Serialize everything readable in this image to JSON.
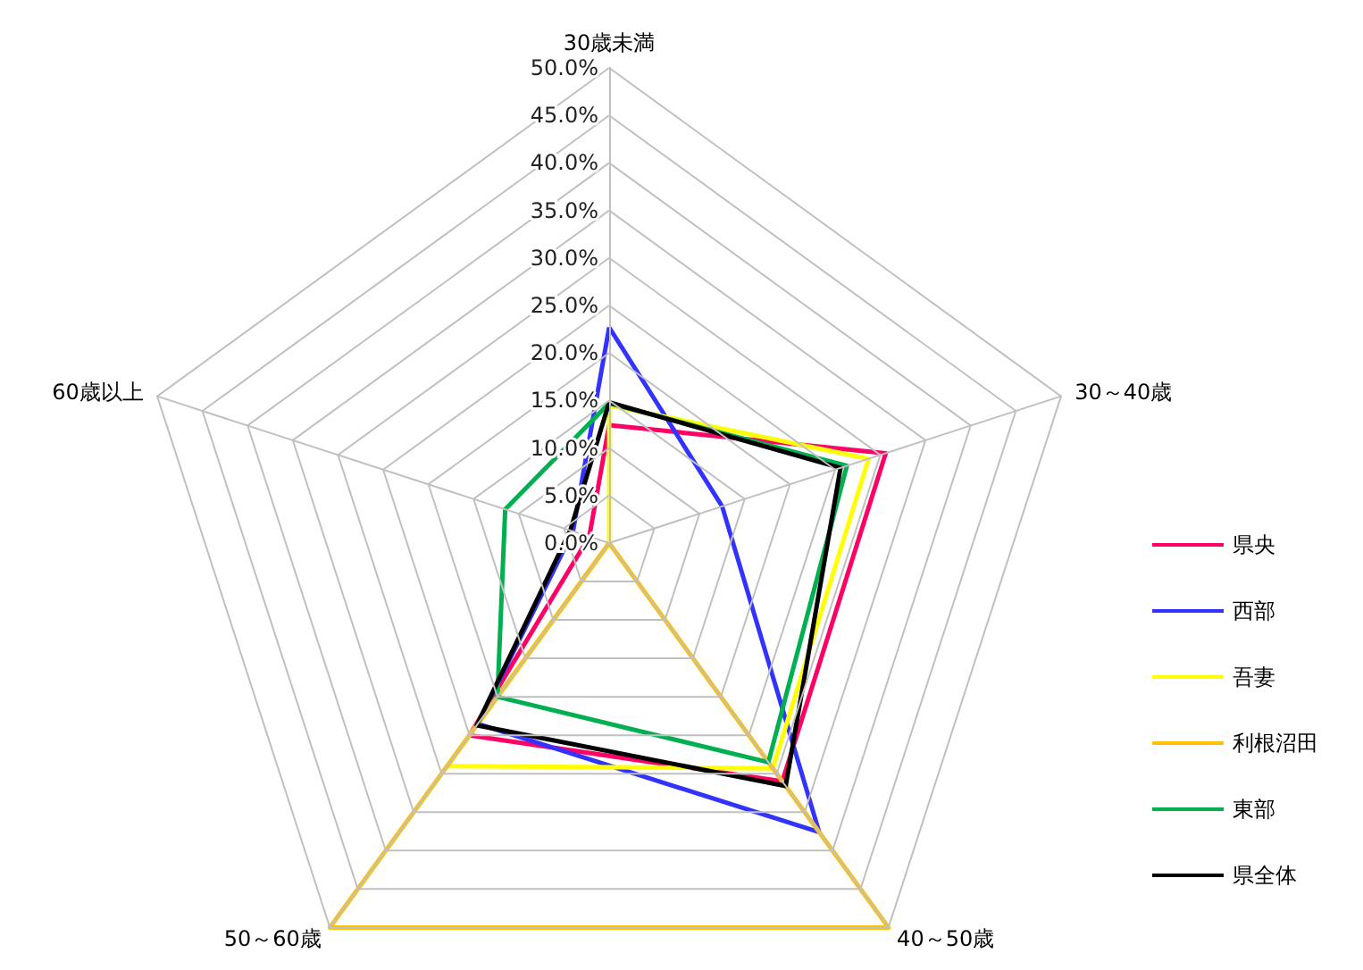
{
  "chart_data": {
    "type": "radar",
    "categories": [
      "30歳未満",
      "30～40歳",
      "40～50歳",
      "50～60歳",
      "60歳以上"
    ],
    "ylim": [
      0,
      50
    ],
    "yticks": [
      {
        "value": 0,
        "label": "0.0%"
      },
      {
        "value": 5,
        "label": "5.0%"
      },
      {
        "value": 10,
        "label": "10.0%"
      },
      {
        "value": 15,
        "label": "15.0%"
      },
      {
        "value": 20,
        "label": "20.0%"
      },
      {
        "value": 25,
        "label": "25.0%"
      },
      {
        "value": 30,
        "label": "30.0%"
      },
      {
        "value": 35,
        "label": "35.0%"
      },
      {
        "value": 40,
        "label": "40.0%"
      },
      {
        "value": 45,
        "label": "45.0%"
      },
      {
        "value": 50,
        "label": "50.0%"
      }
    ],
    "grid": true,
    "legend": "right",
    "marker": "none",
    "line_style": "solid",
    "series": [
      {
        "name": "県央",
        "color": "#ff0066",
        "values": [
          12.4,
          30.6,
          31.0,
          25.0,
          2.2
        ]
      },
      {
        "name": "西部",
        "color": "#3333ff",
        "values": [
          22.7,
          12.5,
          37.6,
          23.5,
          4.0
        ]
      },
      {
        "name": "吾妻",
        "color": "#ffff00",
        "values": [
          14.5,
          28.7,
          29.3,
          29.0,
          0
        ]
      },
      {
        "name": "利根沼田",
        "color": "#ffc000",
        "values": [
          0,
          0,
          50,
          50,
          0
        ]
      },
      {
        "name": "東部",
        "color": "#00b050",
        "values": [
          14.7,
          26.3,
          28.5,
          20.0,
          11.5
        ]
      },
      {
        "name": "県全体",
        "color": "#000000",
        "values": [
          14.8,
          25.6,
          31.6,
          23.7,
          4.3
        ]
      }
    ]
  }
}
